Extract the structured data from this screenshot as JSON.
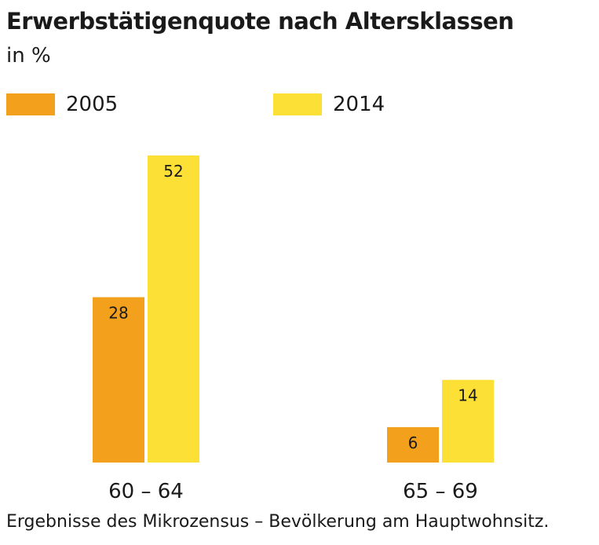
{
  "chart_data": {
    "type": "bar",
    "title": "Erwerbstätigenquote nach Altersklassen",
    "subtitle": "in %",
    "categories": [
      "60 – 64",
      "65 – 69"
    ],
    "series": [
      {
        "name": "2005",
        "values": [
          28,
          6
        ],
        "color": "#f3a01c"
      },
      {
        "name": "2014",
        "values": [
          52,
          14
        ],
        "color": "#fde035"
      }
    ],
    "ylim": [
      0,
      52
    ],
    "grid": false,
    "legend": "top-left",
    "data_labels": true
  },
  "footnote": "Ergebnisse des Mikrozensus – Bevölkerung am Hauptwohnsitz."
}
